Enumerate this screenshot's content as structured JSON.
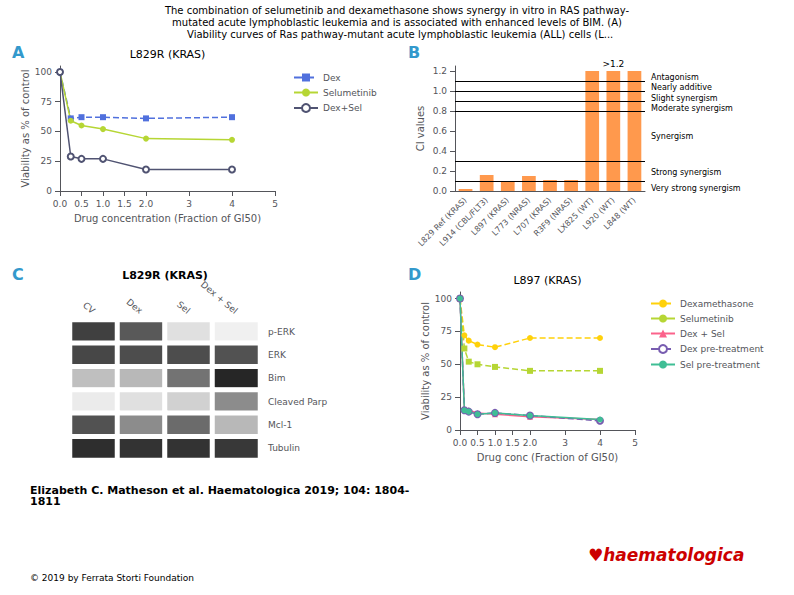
{
  "title": [
    "The combination of selumetinib and dexamethasone shows synergy in vitro in RAS pathway-",
    "mutated acute lymphoblastic leukemia and is associated with enhanced levels of BIM. (A)",
    "  Viability curves of Ras pathway-mutant acute lymphoblastic leukemia (ALL) cells (L..."
  ],
  "annotations": [
    {
      "text": "Elizabeth C. Matheson et al. Haematologica 2019; 104: 1804-\n1811"
    },
    {
      "text": "© 2019 by Ferrata Storti Foundation"
    },
    {
      "text": "♥haematologica",
      "color": "#cc0000"
    }
  ],
  "chart_data": [
    {
      "type": "line",
      "title": "L829R (KRAS)",
      "annotations": [
        {
          "text": "A",
          "color": "#3399cc"
        }
      ],
      "xlabel": "Drug concentration (Fraction of GI50)",
      "ylabel": "Viability as % of control",
      "xlim": [
        0,
        5
      ],
      "ylim": [
        0,
        105
      ],
      "xticks": [
        {
          "value": 0,
          "label": "0.0"
        },
        0.5,
        {
          "value": 1,
          "label": "1.0"
        },
        1.5,
        {
          "value": 2,
          "label": "2.0"
        },
        3,
        4,
        5
      ],
      "yticks": [
        0,
        25,
        50,
        75,
        100
      ],
      "grid": false,
      "legend": "right",
      "series": [
        {
          "name": "Dex",
          "x": [
            0.0,
            0.25,
            0.5,
            1.0,
            2.0,
            4.0
          ],
          "values": [
            100,
            61,
            62,
            62,
            61,
            62
          ],
          "marker": "square",
          "line_style": "dashed"
        },
        {
          "name": "Selumetinib",
          "x": [
            0.0,
            0.25,
            0.5,
            1.0,
            2.0,
            4.0
          ],
          "values": [
            100,
            59,
            55,
            52,
            44,
            43
          ],
          "marker": "circle",
          "line_style": "solid"
        },
        {
          "name": "Dex+Sel",
          "x": [
            0.0,
            0.25,
            0.5,
            1.0,
            2.0,
            4.0
          ],
          "values": [
            100,
            29,
            27,
            27,
            18,
            18
          ],
          "marker": "circle-open",
          "line_style": "solid"
        }
      ]
    },
    {
      "type": "bar",
      "annotations": [
        {
          "text": "B",
          "color": "#3399cc"
        },
        {
          "text": ">1.2",
          "x": "L920 (WT)",
          "y": 1.215
        },
        {
          "text": "Antagonism",
          "y": 1.14
        },
        {
          "text": "Nearly additive",
          "y": 1.04
        },
        {
          "text": "Slight synergism",
          "y": 0.93
        },
        {
          "text": "Moderate synergism",
          "y": 0.83
        },
        {
          "text": "Synergism",
          "y": 0.55
        },
        {
          "text": "Strong synergism",
          "y": 0.19
        },
        {
          "text": "Very strong synergism",
          "y": 0.03
        }
      ],
      "ylabel": "CI values",
      "categories": [
        "L829 Ref (KRAS)",
        "L914 (CBL/FLT3)",
        "L897 (KRAS)",
        "L773 (NRAS)",
        "L707 (KRAS)",
        "R3F9 (NRAS)",
        "LX825 (WT)",
        "L920 (WT)",
        "L848 (WT)"
      ],
      "values": [
        0.02,
        0.16,
        0.1,
        0.15,
        0.11,
        0.11,
        1.2,
        1.2,
        1.2
      ],
      "ylim": [
        0,
        1.25
      ],
      "yticks": [
        {
          "value": 0,
          "label": "0.0"
        },
        0.2,
        0.4,
        0.6,
        0.8,
        {
          "value": 1,
          "label": "1.0"
        },
        1.2
      ],
      "grid": false,
      "reference_lines": [
        1.1,
        1.0,
        0.9,
        0.8,
        0.3,
        0.1
      ]
    },
    {
      "type": "heatmap",
      "subtitle": "L829R (KRAS)",
      "annotations": [
        {
          "text": "C",
          "color": "#3399cc"
        }
      ],
      "columns": [
        "CV",
        "Dex",
        "Sel",
        "Dex + Sel"
      ],
      "rows": [
        "p-ERK",
        "ERK",
        "Bim",
        "Cleaved Parp",
        "Mcl-1",
        "Tubulin"
      ],
      "cells": [
        [
          0.75,
          0.65,
          0.12,
          0.06
        ],
        [
          0.72,
          0.7,
          0.7,
          0.68
        ],
        [
          0.25,
          0.28,
          0.55,
          0.85
        ],
        [
          0.08,
          0.12,
          0.18,
          0.45
        ],
        [
          0.68,
          0.45,
          0.58,
          0.28
        ],
        [
          0.82,
          0.8,
          0.8,
          0.78
        ]
      ],
      "zlim": [
        0,
        1
      ],
      "color": "#000000"
    },
    {
      "type": "line",
      "title": "L897 (KRAS)",
      "annotations": [
        {
          "text": "D",
          "color": "#3399cc"
        }
      ],
      "xlabel": "Drug conc (Fraction of GI50)",
      "ylabel": "Viability as % of control",
      "xlim": [
        0,
        5
      ],
      "ylim": [
        0,
        105
      ],
      "xticks": [
        {
          "value": 0,
          "label": "0.0"
        },
        0.5,
        {
          "value": 1,
          "label": "1.0"
        },
        1.5,
        {
          "value": 2,
          "label": "2.0"
        },
        3,
        4,
        5
      ],
      "yticks": [
        0,
        25,
        50,
        75,
        100
      ],
      "grid": false,
      "legend": "right",
      "series": [
        {
          "name": "Dexamethasone",
          "x": [
            0.0,
            0.125,
            0.25,
            0.5,
            1.0,
            2.0,
            4.0
          ],
          "values": [
            100,
            72,
            68,
            65,
            63,
            70,
            70
          ],
          "marker": "circle",
          "line_style": "dashed"
        },
        {
          "name": "Selumetinib",
          "x": [
            0.0,
            0.125,
            0.25,
            0.5,
            1.0,
            2.0,
            4.0
          ],
          "values": [
            100,
            62,
            52,
            50,
            48,
            45,
            45
          ],
          "marker": "square",
          "line_style": "dashed"
        },
        {
          "name": "Dex + Sel",
          "x": [
            0.0,
            0.125,
            0.25,
            0.5,
            1.0,
            2.0,
            4.0
          ],
          "values": [
            100,
            16,
            15,
            13,
            12,
            10,
            8
          ],
          "marker": "triangle",
          "line_style": "solid"
        },
        {
          "name": "Dex pre-treatment",
          "x": [
            0.0,
            0.125,
            0.25,
            0.5,
            1.0,
            2.0,
            4.0
          ],
          "values": [
            100,
            15,
            14,
            12,
            13,
            11,
            7
          ],
          "marker": "circle-open",
          "line_style": "dashed"
        },
        {
          "name": "Sel pre-treatment",
          "x": [
            0.0,
            0.125,
            0.25,
            0.5,
            1.0,
            2.0,
            4.0
          ],
          "values": [
            100,
            15,
            14,
            12,
            13,
            11,
            8
          ],
          "marker": "circle",
          "line_style": "solid"
        }
      ]
    }
  ]
}
